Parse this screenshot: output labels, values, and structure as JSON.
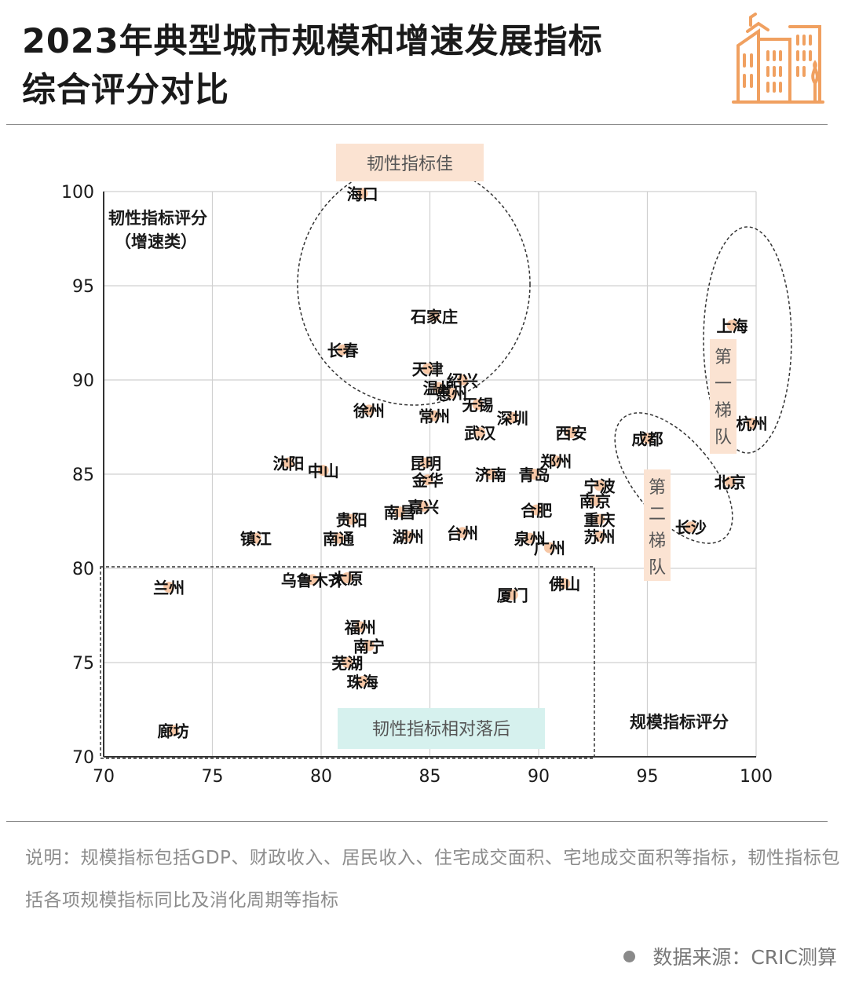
{
  "header": {
    "title_line1": "2023年典型城市规模和增速发展指标",
    "title_line2": "综合评分对比",
    "icon": "city-buildings-icon"
  },
  "colors": {
    "accent_orange": "#f0a060",
    "label_orange": "#fbe3d2",
    "label_teal": "#d6f1ee",
    "point": "#f6c7a6"
  },
  "chart_data": {
    "type": "scatter",
    "xlabel": "规模指标评分",
    "ylabel_line1": "韧性指标评分",
    "ylabel_line2": "（增速类）",
    "xlim": [
      70,
      100
    ],
    "ylim": [
      70,
      100
    ],
    "x_ticks": [
      70,
      75,
      80,
      85,
      90,
      95,
      100
    ],
    "y_ticks": [
      70,
      75,
      80,
      85,
      90,
      95,
      100
    ],
    "grid": true,
    "points": [
      {
        "name": "海口",
        "x": 81.9,
        "y": 99.9
      },
      {
        "name": "石家庄",
        "x": 85.2,
        "y": 93.4
      },
      {
        "name": "长春",
        "x": 81.0,
        "y": 91.6
      },
      {
        "name": "天津",
        "x": 84.9,
        "y": 90.6
      },
      {
        "name": "绍兴",
        "x": 86.5,
        "y": 90.0
      },
      {
        "name": "温州",
        "x": 85.4,
        "y": 89.6
      },
      {
        "name": "惠州",
        "x": 86.0,
        "y": 89.3
      },
      {
        "name": "无锡",
        "x": 87.2,
        "y": 88.7
      },
      {
        "name": "徐州",
        "x": 82.2,
        "y": 88.4
      },
      {
        "name": "常州",
        "x": 85.2,
        "y": 88.1
      },
      {
        "name": "深圳",
        "x": 88.8,
        "y": 88.0
      },
      {
        "name": "武汉",
        "x": 87.3,
        "y": 87.2
      },
      {
        "name": "西安",
        "x": 91.5,
        "y": 87.2
      },
      {
        "name": "成都",
        "x": 95.0,
        "y": 86.9
      },
      {
        "name": "杭州",
        "x": 99.8,
        "y": 87.7
      },
      {
        "name": "上海",
        "x": 98.9,
        "y": 92.9
      },
      {
        "name": "沈阳",
        "x": 78.5,
        "y": 85.6
      },
      {
        "name": "中山",
        "x": 80.1,
        "y": 85.2
      },
      {
        "name": "昆明",
        "x": 84.8,
        "y": 85.6
      },
      {
        "name": "郑州",
        "x": 90.8,
        "y": 85.7
      },
      {
        "name": "金华",
        "x": 84.9,
        "y": 84.7
      },
      {
        "name": "济南",
        "x": 87.8,
        "y": 85.0
      },
      {
        "name": "青岛",
        "x": 89.8,
        "y": 85.0
      },
      {
        "name": "宁波",
        "x": 92.8,
        "y": 84.4
      },
      {
        "name": "北京",
        "x": 98.8,
        "y": 84.6
      },
      {
        "name": "南京",
        "x": 92.6,
        "y": 83.6
      },
      {
        "name": "合肥",
        "x": 89.9,
        "y": 83.1
      },
      {
        "name": "嘉兴",
        "x": 84.7,
        "y": 83.3
      },
      {
        "name": "南昌",
        "x": 83.6,
        "y": 83.0
      },
      {
        "name": "重庆",
        "x": 92.8,
        "y": 82.6
      },
      {
        "name": "贵阳",
        "x": 81.4,
        "y": 82.6
      },
      {
        "name": "长沙",
        "x": 97.0,
        "y": 82.2
      },
      {
        "name": "台州",
        "x": 86.5,
        "y": 81.9
      },
      {
        "name": "镇江",
        "x": 77.0,
        "y": 81.6
      },
      {
        "name": "南通",
        "x": 80.8,
        "y": 81.6
      },
      {
        "name": "湖州",
        "x": 84.0,
        "y": 81.7
      },
      {
        "name": "泉州",
        "x": 89.6,
        "y": 81.6
      },
      {
        "name": "苏州",
        "x": 92.8,
        "y": 81.7
      },
      {
        "name": "广州",
        "x": 90.5,
        "y": 81.1
      },
      {
        "name": "乌鲁木齐",
        "x": 79.6,
        "y": 79.4
      },
      {
        "name": "太原",
        "x": 81.2,
        "y": 79.5
      },
      {
        "name": "兰州",
        "x": 73.0,
        "y": 79.0
      },
      {
        "name": "佛山",
        "x": 91.2,
        "y": 79.2
      },
      {
        "name": "厦门",
        "x": 88.8,
        "y": 78.6
      },
      {
        "name": "福州",
        "x": 81.8,
        "y": 76.9
      },
      {
        "name": "南宁",
        "x": 82.2,
        "y": 75.9
      },
      {
        "name": "芜湖",
        "x": 81.2,
        "y": 75.0
      },
      {
        "name": "珠海",
        "x": 81.9,
        "y": 74.0
      },
      {
        "name": "廊坊",
        "x": 73.2,
        "y": 71.4
      }
    ],
    "annotations": {
      "top_label": "韧性指标佳",
      "bottom_label": "韧性指标相对落后",
      "tier1_label": "第一梯队",
      "tier2_label": "第二梯队"
    }
  },
  "footer": {
    "note": "说明：规模指标包括GDP、财政收入、居民收入、住宅成交面积、宅地成交面积等指标，韧性指标包括各项规模指标同比及消化周期等指标",
    "source": "数据来源：CRIC测算"
  }
}
